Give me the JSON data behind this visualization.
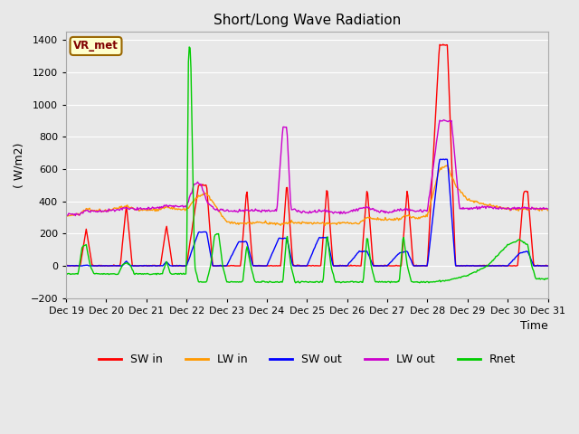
{
  "title": "Short/Long Wave Radiation",
  "ylabel": "( W/m2)",
  "xlabel": "Time",
  "ylim": [
    -200,
    1450
  ],
  "yticks": [
    -200,
    0,
    200,
    400,
    600,
    800,
    1000,
    1200,
    1400
  ],
  "annotation": "VR_met",
  "colors": {
    "SW_in": "#ff0000",
    "LW_in": "#ff9900",
    "SW_out": "#0000ff",
    "LW_out": "#cc00cc",
    "Rnet": "#00cc00"
  },
  "legend_labels": [
    "SW in",
    "LW in",
    "SW out",
    "LW out",
    "Rnet"
  ],
  "xtick_labels": [
    "Dec 19",
    "Dec 20",
    "Dec 21",
    "Dec 22",
    "Dec 23",
    "Dec 24",
    "Dec 25",
    "Dec 26",
    "Dec 27",
    "Dec 28",
    "Dec 29",
    "Dec 30",
    "Dec 31"
  ],
  "background_color": "#e8e8e8",
  "grid_color": "#ffffff",
  "figsize": [
    6.4,
    4.8
  ],
  "dpi": 100
}
